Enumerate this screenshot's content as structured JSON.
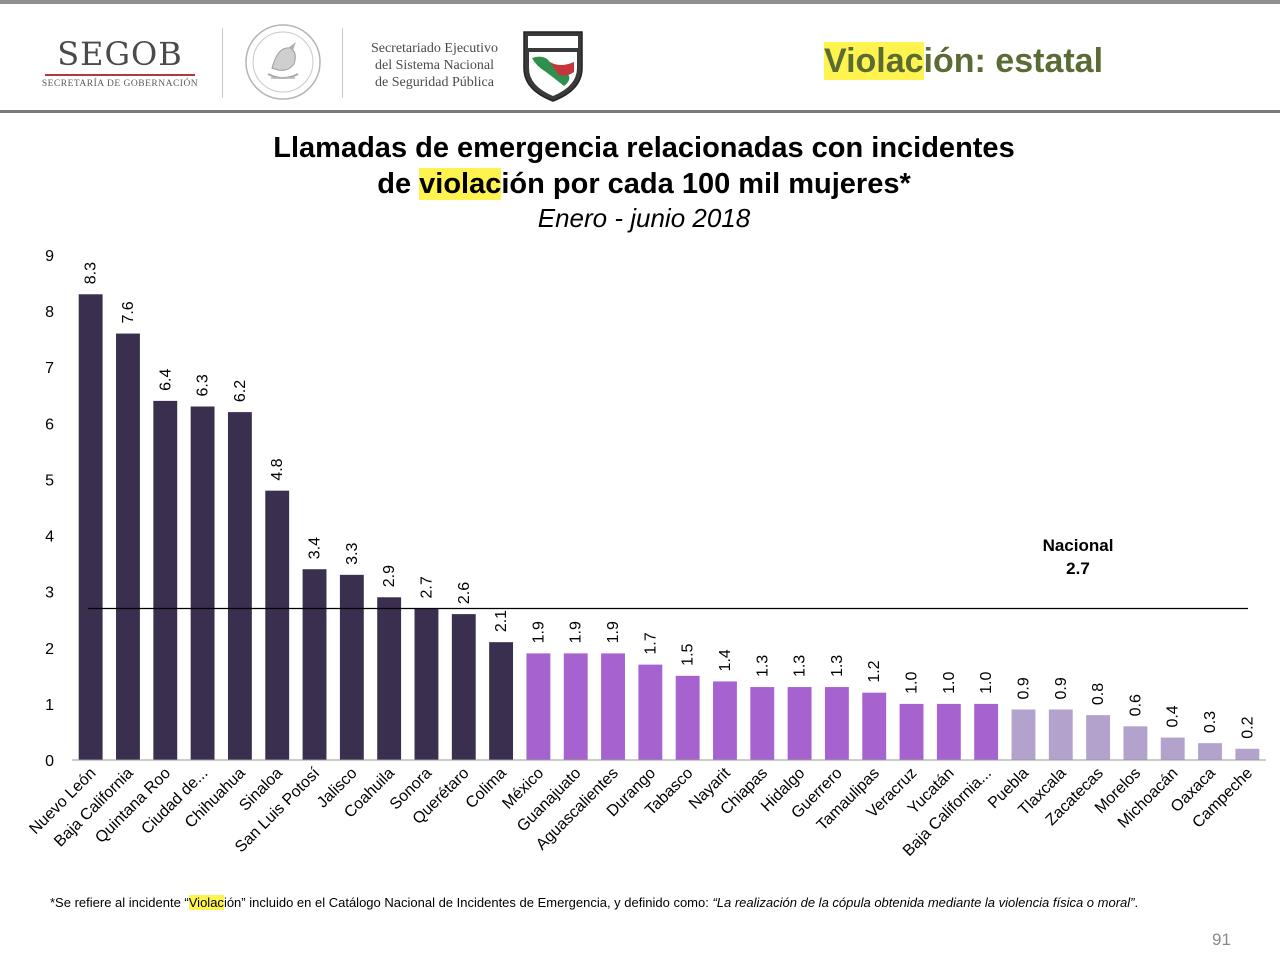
{
  "header": {
    "segob_title": "SEGOB",
    "segob_subtitle": "SECRETARÍA DE GOBERNACIÓN",
    "sesnsp_lines": [
      "Secretariado Ejecutivo",
      "del Sistema Nacional",
      "de Seguridad Pública"
    ],
    "logo_icons": [
      "mexican-coat-of-arms-seal-icon",
      "sesnsp-shield-logo-icon"
    ],
    "title_highlight": "Violac",
    "title_rest": "ión: estatal",
    "title_color": "#5b6b34",
    "highlight_color": "#fff44f"
  },
  "title": {
    "line1": "Llamadas de emergencia relacionadas con incidentes",
    "line2_pre": "de ",
    "line2_highlight": "violac",
    "line2_post": "ión por cada 100 mil mujeres*",
    "subtitle": "Enero - junio 2018"
  },
  "chart_data": {
    "type": "bar",
    "categories": [
      "Nuevo León",
      "Baja California",
      "Quintana Roo",
      "Ciudad de...",
      "Chihuahua",
      "Sinaloa",
      "San Luis Potosí",
      "Jalisco",
      "Coahuila",
      "Sonora",
      "Querétaro",
      "Colima",
      "México",
      "Guanajuato",
      "Aguascalientes",
      "Durango",
      "Tabasco",
      "Nayarit",
      "Chiapas",
      "Hidalgo",
      "Guerrero",
      "Tamaulipas",
      "Veracruz",
      "Yucatán",
      "Baja California...",
      "Puebla",
      "Tlaxcala",
      "Zacatecas",
      "Morelos",
      "Michoacán",
      "Oaxaca",
      "Campeche"
    ],
    "values": [
      8.3,
      7.6,
      6.4,
      6.3,
      6.2,
      4.8,
      3.4,
      3.3,
      2.9,
      2.7,
      2.6,
      2.1,
      1.9,
      1.9,
      1.9,
      1.7,
      1.5,
      1.4,
      1.3,
      1.3,
      1.3,
      1.2,
      1.0,
      1.0,
      1.0,
      0.9,
      0.9,
      0.8,
      0.6,
      0.4,
      0.3,
      0.2
    ],
    "group_colors": [
      "#3b2f4f",
      "#a663cf",
      "#b3a3cc"
    ],
    "groups": [
      0,
      0,
      0,
      0,
      0,
      0,
      0,
      0,
      0,
      0,
      0,
      0,
      1,
      1,
      1,
      1,
      1,
      1,
      1,
      1,
      1,
      1,
      1,
      1,
      1,
      2,
      2,
      2,
      2,
      2,
      2,
      2
    ],
    "ylim": [
      0,
      9
    ],
    "yticks": [
      0,
      1,
      2,
      3,
      4,
      5,
      6,
      7,
      8,
      9
    ],
    "reference_line": {
      "label": "Nacional",
      "value": 2.7
    }
  },
  "footnote": {
    "pre": "*Se refiere al incidente “",
    "highlight": "Violac",
    "mid": "ión” incluido en el Catálogo Nacional de Incidentes de Emergencia, y definido como: ",
    "quote": "“La realización de la cópula obtenida mediante la violencia física o moral”",
    "end": "."
  },
  "page_number": "91"
}
